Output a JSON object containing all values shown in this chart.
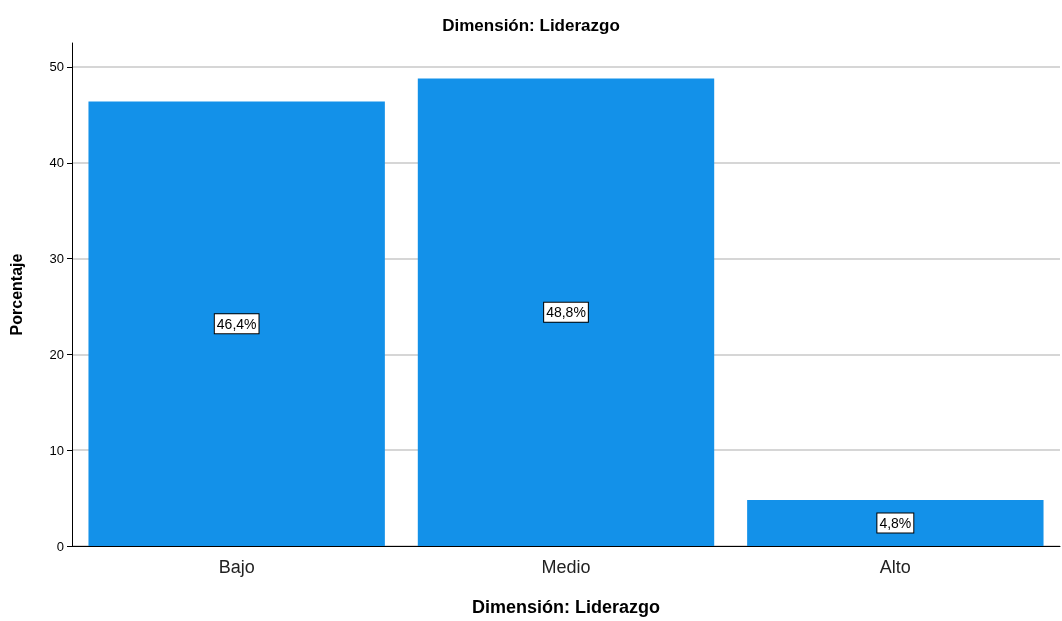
{
  "chart_data": {
    "type": "bar",
    "title": "Dimensión: Liderazgo",
    "xlabel": "Dimensión: Liderazgo",
    "ylabel": "Porcentaje",
    "categories": [
      "Bajo",
      "Medio",
      "Alto"
    ],
    "values": [
      46.4,
      48.8,
      4.8
    ],
    "value_labels": [
      "46,4%",
      "48,8%",
      "4,8%"
    ],
    "color": "#1391e9",
    "ylim": [
      0,
      52.5
    ],
    "yticks": [
      0,
      10,
      20,
      30,
      40,
      50
    ],
    "grid": "y"
  }
}
